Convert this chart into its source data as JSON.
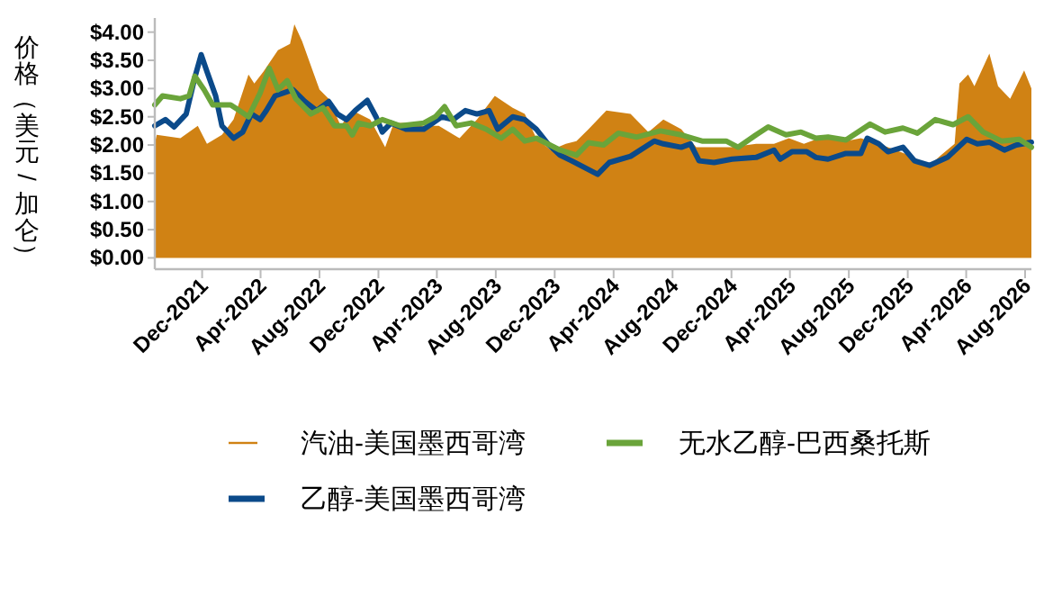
{
  "chart_data": {
    "type": "area",
    "ylabel": "价格（美元/加仑）",
    "xlim": [
      "2021-08-25",
      "2026-08-14"
    ],
    "xticks": [
      {
        "value": "2021-12-01",
        "label": "Dec-2021"
      },
      {
        "value": "2022-04-01",
        "label": "Apr-2022"
      },
      {
        "value": "2022-08-01",
        "label": "Aug-2022"
      },
      {
        "value": "2022-12-01",
        "label": "Dec-2022"
      },
      {
        "value": "2023-04-01",
        "label": "Apr-2023"
      },
      {
        "value": "2023-08-01",
        "label": "Aug-2023"
      },
      {
        "value": "2023-12-01",
        "label": "Dec-2023"
      },
      {
        "value": "2024-04-01",
        "label": "Apr-2024"
      },
      {
        "value": "2024-08-01",
        "label": "Aug-2024"
      },
      {
        "value": "2024-12-01",
        "label": "Dec-2024"
      },
      {
        "value": "2025-04-01",
        "label": "Apr-2025"
      },
      {
        "value": "2025-08-01",
        "label": "Aug-2025"
      },
      {
        "value": "2025-12-01",
        "label": "Dec-2025"
      },
      {
        "value": "2026-04-01",
        "label": "Apr-2026"
      },
      {
        "value": "2026-08-01",
        "label": "Aug-2026"
      }
    ],
    "ylim": [
      -0.2,
      4.25
    ],
    "yticks": [
      {
        "value": 0,
        "label": "$0.00"
      },
      {
        "value": 0.5,
        "label": "$0.50"
      },
      {
        "value": 1,
        "label": "$1.00"
      },
      {
        "value": 1.5,
        "label": "$1.50"
      },
      {
        "value": 2,
        "label": "$2.00"
      },
      {
        "value": 2.5,
        "label": "$2.50"
      },
      {
        "value": 3,
        "label": "$3.00"
      },
      {
        "value": 3.5,
        "label": "$3.50"
      },
      {
        "value": 4,
        "label": "$4.00"
      }
    ],
    "grid": false,
    "legend": "bottom",
    "series": [
      {
        "name": "汽油-美国墨西哥湾",
        "color": "#d08214",
        "x": [
          "2021-08-25",
          "2021-08-29",
          "2021-10-17",
          "2021-11-22",
          "2021-12-11",
          "2022-01-11",
          "2022-02-04",
          "2022-03-07",
          "2022-03-19",
          "2022-04-07",
          "2022-05-07",
          "2022-06-01",
          "2022-06-10",
          "2022-06-26",
          "2022-07-14",
          "2022-08-01",
          "2022-08-20",
          "2022-09-14",
          "2022-10-08",
          "2022-11-14",
          "2022-12-15",
          "2023-01-02",
          "2023-01-27",
          "2023-03-05",
          "2023-04-05",
          "2023-05-18",
          "2023-06-23",
          "2023-07-30",
          "2023-09-05",
          "2023-09-30",
          "2023-10-24",
          "2023-11-23",
          "2023-12-24",
          "2024-01-15",
          "2024-02-09",
          "2024-03-17",
          "2024-05-06",
          "2024-06-12",
          "2024-07-13",
          "2024-08-19",
          "2024-09-19",
          "2024-10-26",
          "2024-11-30",
          "2025-01-21",
          "2025-02-27",
          "2025-03-30",
          "2025-04-30",
          "2025-06-19",
          "2025-07-26",
          "2025-08-26",
          "2025-10-21",
          "2025-12-09",
          "2026-01-15",
          "2026-02-08",
          "2026-03-08",
          "2026-03-18",
          "2026-04-05",
          "2026-04-18",
          "2026-05-19",
          "2026-06-06",
          "2026-07-01",
          "2026-07-30",
          "2026-08-14"
        ],
        "values": [
          2.02,
          2.18,
          2.12,
          2.34,
          2.02,
          2.18,
          2.45,
          3.25,
          3.09,
          3.3,
          3.68,
          3.79,
          4.14,
          3.84,
          3.41,
          2.98,
          2.82,
          2.34,
          2.61,
          2.45,
          1.96,
          2.39,
          2.39,
          2.34,
          2.34,
          2.12,
          2.45,
          2.87,
          2.66,
          2.55,
          2.12,
          1.91,
          2.02,
          2.07,
          2.28,
          2.61,
          2.55,
          2.23,
          2.45,
          2.28,
          1.96,
          1.96,
          1.96,
          2.02,
          2.02,
          2.12,
          2.02,
          2.18,
          2.07,
          2.12,
          1.96,
          1.8,
          1.64,
          1.82,
          2.02,
          3.09,
          3.25,
          3.04,
          3.62,
          3.04,
          2.82,
          3.32,
          3.0
        ]
      },
      {
        "name": "乙醇-美国墨西哥湾",
        "type": "line",
        "color": "#0b4a8a",
        "x": [
          "2021-08-25",
          "2021-09-16",
          "2021-10-04",
          "2021-10-29",
          "2021-11-16",
          "2021-11-29",
          "2021-12-11",
          "2021-12-29",
          "2022-01-11",
          "2022-02-04",
          "2022-02-23",
          "2022-03-13",
          "2022-03-31",
          "2022-04-13",
          "2022-05-01",
          "2022-06-07",
          "2022-07-02",
          "2022-07-26",
          "2022-08-20",
          "2022-09-07",
          "2022-09-26",
          "2022-10-14",
          "2022-11-08",
          "2022-11-26",
          "2022-12-09",
          "2022-12-27",
          "2023-01-27",
          "2023-03-05",
          "2023-04-11",
          "2023-05-05",
          "2023-05-30",
          "2023-06-23",
          "2023-07-18",
          "2023-08-05",
          "2023-09-05",
          "2023-09-30",
          "2023-10-24",
          "2023-11-17",
          "2023-12-12",
          "2024-01-05",
          "2024-02-28",
          "2024-03-23",
          "2024-05-06",
          "2024-06-24",
          "2024-07-13",
          "2024-08-19",
          "2024-09-07",
          "2024-09-25",
          "2024-10-26",
          "2024-12-02",
          "2025-01-21",
          "2025-02-27",
          "2025-03-12",
          "2025-04-05",
          "2025-05-06",
          "2025-05-25",
          "2025-06-19",
          "2025-07-26",
          "2025-08-26",
          "2025-09-08",
          "2025-10-02",
          "2025-10-21",
          "2025-11-21",
          "2025-12-15",
          "2026-01-15",
          "2026-02-21",
          "2026-04-02",
          "2026-04-24",
          "2026-05-19",
          "2026-06-19",
          "2026-07-14",
          "2026-08-14"
        ],
        "values": [
          2.34,
          2.45,
          2.32,
          2.55,
          3.2,
          3.6,
          3.3,
          2.87,
          2.34,
          2.12,
          2.23,
          2.55,
          2.45,
          2.61,
          2.87,
          2.98,
          2.77,
          2.61,
          2.77,
          2.55,
          2.45,
          2.61,
          2.79,
          2.5,
          2.23,
          2.39,
          2.28,
          2.28,
          2.5,
          2.45,
          2.61,
          2.55,
          2.61,
          2.28,
          2.5,
          2.45,
          2.28,
          2.02,
          1.82,
          1.72,
          1.48,
          1.69,
          1.8,
          2.07,
          2.02,
          1.96,
          2.02,
          1.72,
          1.69,
          1.75,
          1.78,
          1.91,
          1.75,
          1.88,
          1.88,
          1.78,
          1.75,
          1.85,
          1.85,
          2.12,
          2.02,
          1.88,
          1.96,
          1.72,
          1.64,
          1.78,
          2.1,
          2.02,
          2.05,
          1.91,
          2.0,
          2.05
        ]
      },
      {
        "name": "无水乙醇-巴西桑托斯",
        "type": "line",
        "color": "#6aa43a",
        "x": [
          "2021-08-25",
          "2021-09-10",
          "2021-10-17",
          "2021-11-04",
          "2021-11-16",
          "2021-12-05",
          "2021-12-23",
          "2022-01-29",
          "2022-02-16",
          "2022-03-07",
          "2022-03-31",
          "2022-04-19",
          "2022-05-07",
          "2022-05-26",
          "2022-06-13",
          "2022-07-14",
          "2022-08-08",
          "2022-09-01",
          "2022-09-26",
          "2022-10-08",
          "2022-10-21",
          "2022-11-14",
          "2022-12-09",
          "2023-01-15",
          "2023-03-05",
          "2023-03-29",
          "2023-04-17",
          "2023-05-11",
          "2023-06-11",
          "2023-07-12",
          "2023-08-12",
          "2023-09-05",
          "2023-09-30",
          "2023-10-24",
          "2023-12-12",
          "2024-01-15",
          "2024-02-09",
          "2024-03-11",
          "2024-04-11",
          "2024-05-18",
          "2024-07-07",
          "2024-08-19",
          "2024-10-01",
          "2024-11-20",
          "2024-12-15",
          "2025-01-21",
          "2025-02-15",
          "2025-03-24",
          "2025-04-24",
          "2025-05-25",
          "2025-06-19",
          "2025-07-26",
          "2025-09-14",
          "2025-10-15",
          "2025-11-21",
          "2025-12-21",
          "2026-01-27",
          "2026-03-05",
          "2026-04-05",
          "2026-05-06",
          "2026-06-13",
          "2026-07-20",
          "2026-08-14"
        ],
        "values": [
          2.71,
          2.87,
          2.82,
          2.87,
          3.22,
          2.98,
          2.71,
          2.71,
          2.61,
          2.5,
          2.92,
          3.36,
          2.98,
          3.14,
          2.82,
          2.55,
          2.66,
          2.34,
          2.34,
          2.18,
          2.39,
          2.34,
          2.45,
          2.34,
          2.39,
          2.5,
          2.68,
          2.34,
          2.39,
          2.28,
          2.12,
          2.28,
          2.07,
          2.12,
          1.91,
          1.82,
          2.04,
          2.0,
          2.21,
          2.14,
          2.25,
          2.18,
          2.07,
          2.07,
          1.96,
          2.18,
          2.32,
          2.18,
          2.23,
          2.12,
          2.14,
          2.09,
          2.37,
          2.23,
          2.3,
          2.21,
          2.45,
          2.36,
          2.5,
          2.23,
          2.07,
          2.1,
          1.96
        ]
      }
    ]
  }
}
